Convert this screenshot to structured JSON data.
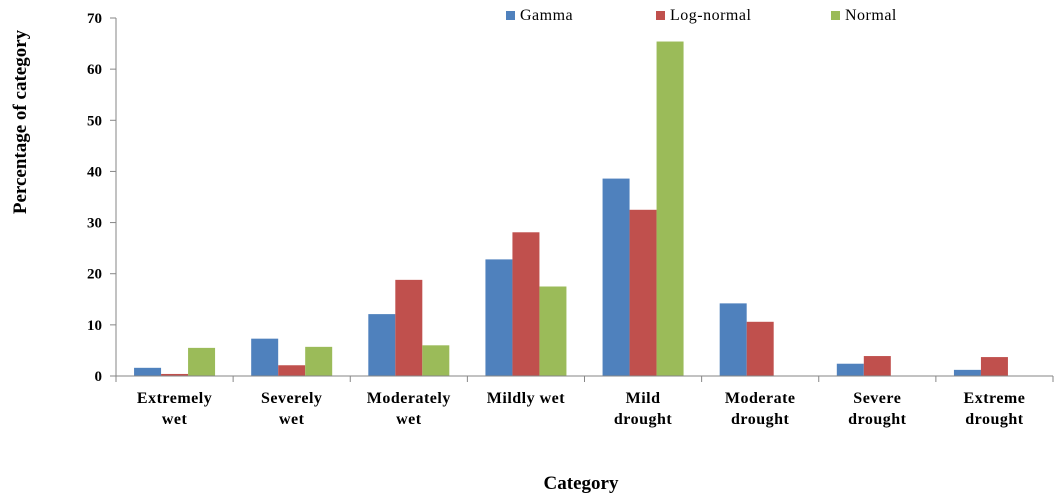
{
  "chart_data": {
    "type": "bar",
    "title": "",
    "xlabel": "Category",
    "ylabel": "Percentage of category",
    "ylim": [
      0,
      70
    ],
    "yticks": [
      0,
      10,
      20,
      30,
      40,
      50,
      60,
      70
    ],
    "grid": false,
    "legend_position": "top-right",
    "categories": [
      [
        "Extremely",
        "wet"
      ],
      [
        "Severely",
        "wet"
      ],
      [
        "Moderately",
        "wet"
      ],
      [
        "Mildly wet"
      ],
      [
        "Mild",
        "drought"
      ],
      [
        "Moderate",
        "drought"
      ],
      [
        "Severe",
        "drought"
      ],
      [
        "Extreme",
        "drought"
      ]
    ],
    "series": [
      {
        "name": "Gamma",
        "color": "#4F81BD",
        "values": [
          1.6,
          7.3,
          12.1,
          22.8,
          38.6,
          14.2,
          2.4,
          1.2
        ]
      },
      {
        "name": "Log-normal",
        "color": "#C0504D",
        "values": [
          0.4,
          2.1,
          18.8,
          28.1,
          32.5,
          10.6,
          3.9,
          3.7
        ]
      },
      {
        "name": "Normal",
        "color": "#9BBB59",
        "values": [
          5.5,
          5.7,
          6.0,
          17.5,
          65.4,
          0,
          0,
          0
        ]
      }
    ]
  }
}
